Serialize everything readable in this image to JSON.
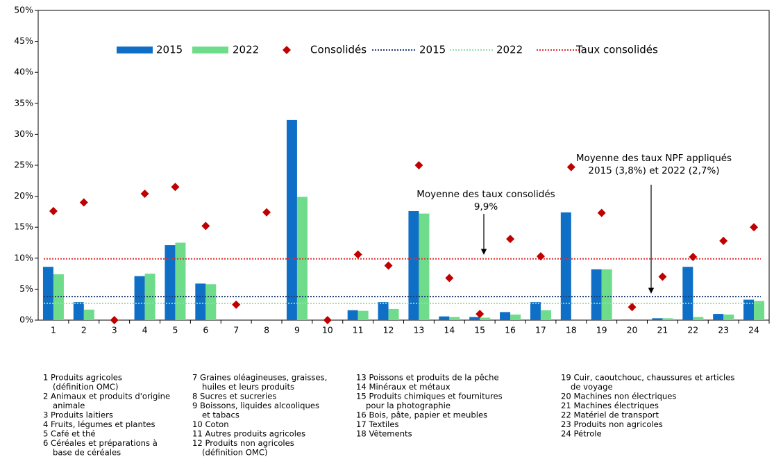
{
  "chart_data": {
    "type": "bar",
    "categories": [
      "1",
      "2",
      "3",
      "4",
      "5",
      "6",
      "7",
      "8",
      "9",
      "10",
      "11",
      "12",
      "13",
      "14",
      "15",
      "16",
      "17",
      "18",
      "19",
      "20",
      "21",
      "22",
      "23",
      "24"
    ],
    "series": [
      {
        "name": "2015",
        "color": "#0f6fc6",
        "values": [
          8.6,
          2.9,
          0,
          7.1,
          12.1,
          5.9,
          0,
          0,
          32.3,
          0,
          1.6,
          2.9,
          17.6,
          0.6,
          0.5,
          1.3,
          2.9,
          17.4,
          8.2,
          0.1,
          0.3,
          8.6,
          1.0,
          3.3
        ]
      },
      {
        "name": "2022",
        "color": "#6fdc8c",
        "values": [
          7.4,
          1.7,
          0,
          7.5,
          12.5,
          5.8,
          0,
          0,
          19.9,
          0,
          1.5,
          1.8,
          17.2,
          0.5,
          0.4,
          0.9,
          1.6,
          0,
          8.2,
          0,
          0.3,
          0.5,
          0.9,
          3.1
        ]
      }
    ],
    "markers": {
      "name": "Consolidés",
      "color": "#c00000",
      "values": [
        17.6,
        19.0,
        0,
        20.4,
        21.5,
        15.2,
        2.5,
        17.4,
        null,
        0,
        10.6,
        8.8,
        25.0,
        6.8,
        1.0,
        13.1,
        10.3,
        24.7,
        17.3,
        2.1,
        7.0,
        10.2,
        12.8,
        15.0
      ]
    },
    "lines": [
      {
        "name": "2015",
        "color": "#1f3b73",
        "value": 3.8
      },
      {
        "name": "2022",
        "color": "#8fe0a8",
        "value": 2.7
      },
      {
        "name": "Taux consolidés",
        "color": "#e03030",
        "value": 9.9
      }
    ],
    "ylim": [
      0,
      50
    ],
    "yticks": [
      {
        "value": 0,
        "label": "0%"
      },
      {
        "value": 5,
        "label": "5%"
      },
      {
        "value": 10,
        "label": "10%"
      },
      {
        "value": 15,
        "label": "15%"
      },
      {
        "value": 20,
        "label": "20%"
      },
      {
        "value": 25,
        "label": "25%"
      },
      {
        "value": 30,
        "label": "30%"
      },
      {
        "value": 35,
        "label": "35%"
      },
      {
        "value": 40,
        "label": "40%"
      },
      {
        "value": 45,
        "label": "45%"
      },
      {
        "value": 50,
        "label": "50%"
      }
    ],
    "annotations": [
      [
        "Moyenne des taux consolidés",
        "9,9%"
      ],
      [
        "Moyenne des taux NPF appliqués",
        "2015 (3,8%) et 2022 (2,7%)"
      ]
    ],
    "notes": [
      [
        [
          "1 Produits agricoles",
          "(définition OMC)"
        ],
        [
          "2 Animaux et produits d'origine",
          "animale"
        ],
        [
          "3 Produits laitiers"
        ],
        [
          "4 Fruits, légumes et plantes"
        ],
        [
          "5 Café et thé"
        ],
        [
          "6 Céréales et préparations à",
          "base de céréales"
        ]
      ],
      [
        [
          "7 Graines oléagineuses, graisses,",
          "huiles et leurs produits"
        ],
        [
          "8 Sucres et sucreries"
        ],
        [
          "9 Boissons, liquides alcooliques",
          "et tabacs"
        ],
        [
          "10 Coton"
        ],
        [
          "11 Autres produits agricoles"
        ],
        [
          "12 Produits non agricoles",
          "(définition OMC)"
        ]
      ],
      [
        [
          "13 Poissons et produits de la pêche"
        ],
        [
          "14 Minéraux et métaux"
        ],
        [
          "15 Produits chimiques et fournitures",
          "pour la photographie"
        ],
        [
          "16 Bois, pâte, papier et meubles"
        ],
        [
          "17 Textiles"
        ],
        [
          "18 Vêtements"
        ]
      ],
      [
        [
          "19 Cuir, caoutchouc, chaussures et articles",
          "de voyage"
        ],
        [
          "20 Machines non électriques"
        ],
        [
          "21 Machines électriques"
        ],
        [
          "22 Matériel de transport"
        ],
        [
          "23 Produits non agricoles"
        ],
        [
          "24 Pétrole"
        ]
      ]
    ]
  }
}
